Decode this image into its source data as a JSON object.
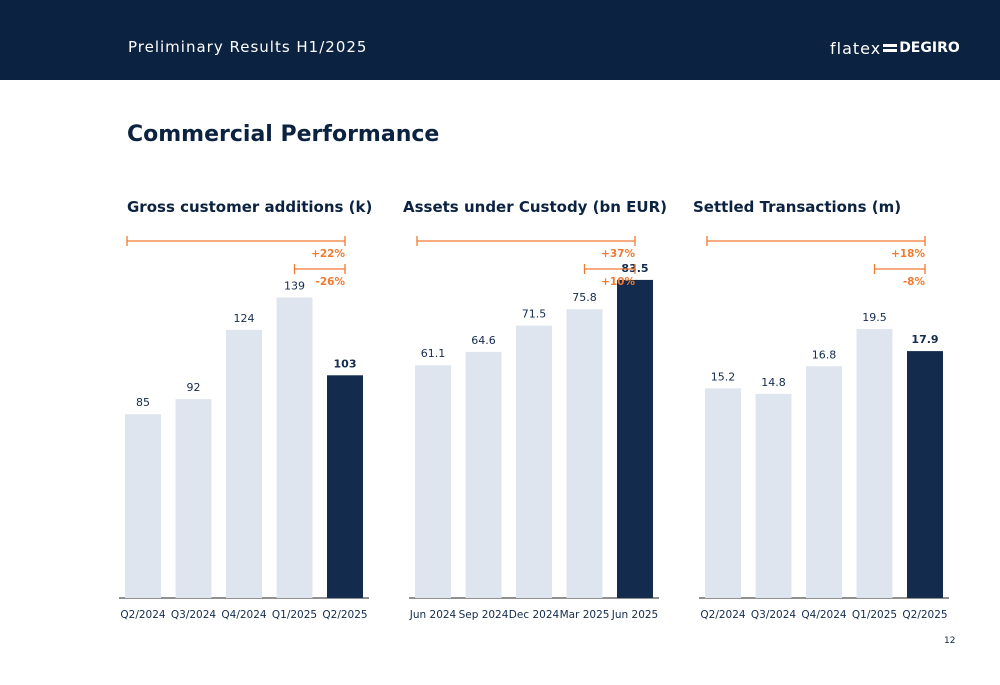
{
  "header": {
    "title": "Preliminary Results H1/2025"
  },
  "logo": {
    "part1": "flatex",
    "part2": "DEGIRO"
  },
  "page_title": "Commercial Performance",
  "page_number": "12",
  "colors": {
    "navy": "#132b4d",
    "light_bar": "#dfe5ef",
    "accent": "#f07a32",
    "header_bg": "#0b2240"
  },
  "chart_data": [
    {
      "type": "bar",
      "title": "Gross customer additions (k)",
      "categories": [
        "Q2/2024",
        "Q3/2024",
        "Q4/2024",
        "Q1/2025",
        "Q2/2025"
      ],
      "values": [
        85,
        92,
        124,
        139,
        103
      ],
      "labels": [
        "85",
        "92",
        "124",
        "139",
        "103"
      ],
      "highlight_index": 4,
      "ylim": [
        0,
        185
      ],
      "annotations": [
        {
          "text": "+22%",
          "from": 0,
          "to": 4
        },
        {
          "text": "-26%",
          "from": 3,
          "to": 4
        }
      ]
    },
    {
      "type": "bar",
      "title": "Assets under Custody (bn EUR)",
      "categories": [
        "Jun 2024",
        "Sep 2024",
        "Dec 2024",
        "Mar 2025",
        "Jun 2025"
      ],
      "values": [
        61.1,
        64.6,
        71.5,
        75.8,
        83.5
      ],
      "labels": [
        "61.1",
        "64.6",
        "71.5",
        "75.8",
        "83.5"
      ],
      "highlight_index": 4,
      "ylim": [
        0,
        105
      ],
      "annotations": [
        {
          "text": "+37%",
          "from": 0,
          "to": 4
        },
        {
          "text": "+10%",
          "from": 3,
          "to": 4
        }
      ]
    },
    {
      "type": "bar",
      "title": "Settled Transactions (m)",
      "categories": [
        "Q2/2024",
        "Q3/2024",
        "Q4/2024",
        "Q1/2025",
        "Q2/2025"
      ],
      "values": [
        15.2,
        14.8,
        16.8,
        19.5,
        17.9
      ],
      "labels": [
        "15.2",
        "14.8",
        "16.8",
        "19.5",
        "17.9"
      ],
      "highlight_index": 4,
      "ylim": [
        0,
        29
      ],
      "annotations": [
        {
          "text": "+18%",
          "from": 0,
          "to": 4
        },
        {
          "text": "-8%",
          "from": 3,
          "to": 4
        }
      ]
    }
  ]
}
